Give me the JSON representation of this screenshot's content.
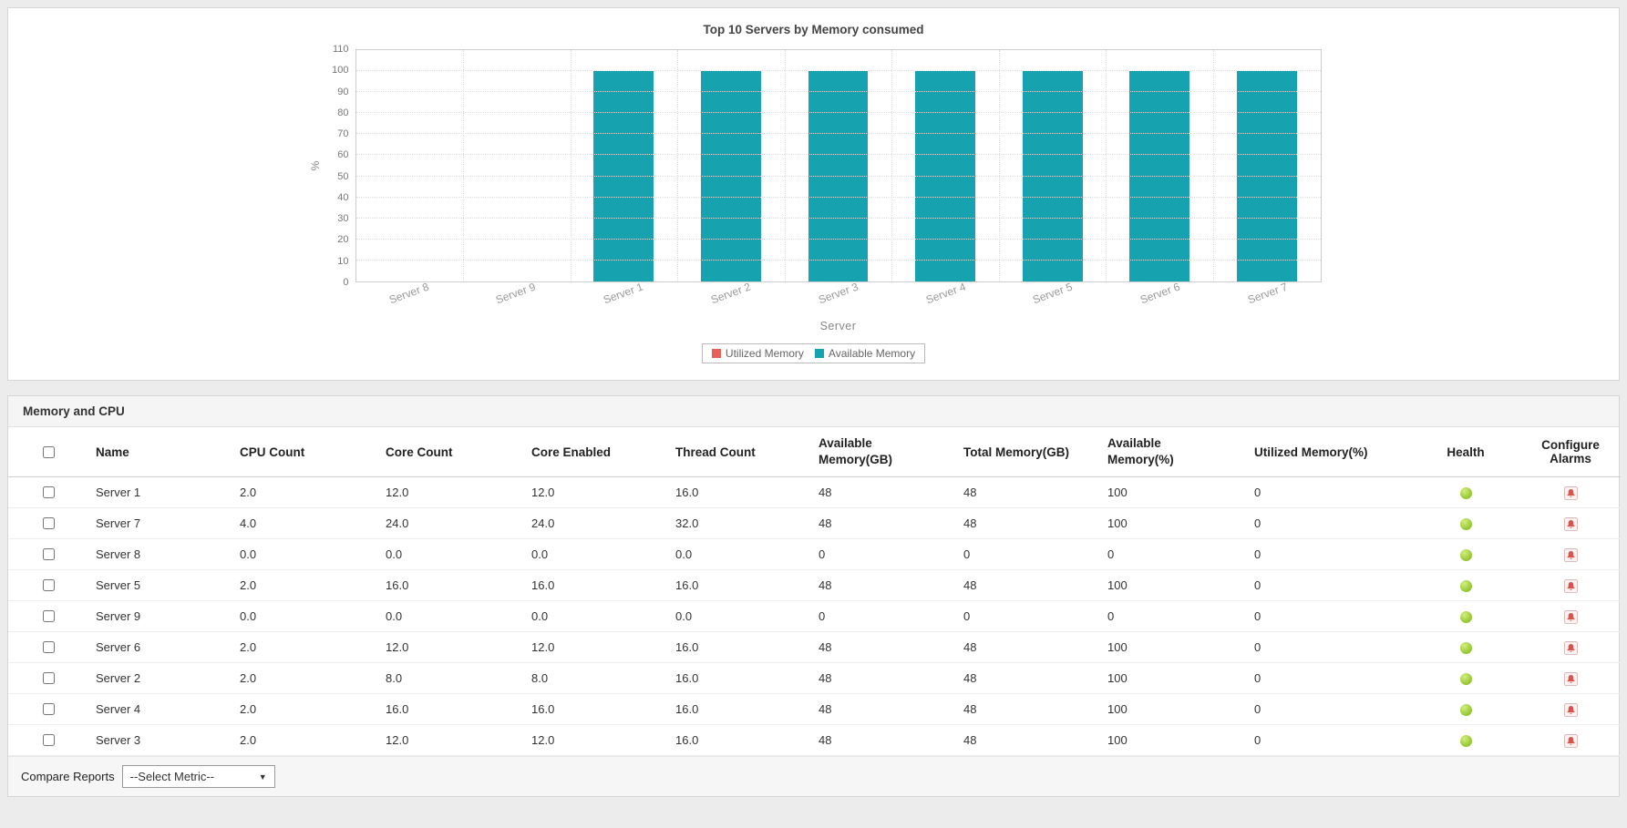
{
  "chart_data": {
    "type": "bar",
    "title": "Top 10 Servers by Memory consumed",
    "xlabel": "Server",
    "ylabel": "%",
    "ylim": [
      0,
      110
    ],
    "ytick_step": 10,
    "grid": true,
    "legend_position": "bottom",
    "categories": [
      "Server 8",
      "Server 9",
      "Server 1",
      "Server 2",
      "Server 3",
      "Server 4",
      "Server 5",
      "Server 6",
      "Server 7"
    ],
    "series": [
      {
        "name": "Utilized Memory",
        "color": "#e8605a",
        "values": [
          0,
          0,
          0,
          0,
          0,
          0,
          0,
          0,
          0
        ]
      },
      {
        "name": "Available Memory",
        "color": "#17a2b0",
        "values": [
          0,
          0,
          100,
          100,
          100,
          100,
          100,
          100,
          100
        ]
      }
    ]
  },
  "table": {
    "title": "Memory and CPU",
    "columns": [
      "Name",
      "CPU Count",
      "Core Count",
      "Core Enabled",
      "Thread Count",
      "Available Memory(GB)",
      "Total Memory(GB)",
      "Available Memory(%)",
      "Utilized Memory(%)",
      "Health",
      "Configure Alarms"
    ],
    "rows": [
      {
        "cells": [
          "Server 1",
          "2.0",
          "12.0",
          "12.0",
          "16.0",
          "48",
          "48",
          "100",
          "0"
        ],
        "health": "green"
      },
      {
        "cells": [
          "Server 7",
          "4.0",
          "24.0",
          "24.0",
          "32.0",
          "48",
          "48",
          "100",
          "0"
        ],
        "health": "green"
      },
      {
        "cells": [
          "Server 8",
          "0.0",
          "0.0",
          "0.0",
          "0.0",
          "0",
          "0",
          "0",
          "0"
        ],
        "health": "green"
      },
      {
        "cells": [
          "Server 5",
          "2.0",
          "16.0",
          "16.0",
          "16.0",
          "48",
          "48",
          "100",
          "0"
        ],
        "health": "green"
      },
      {
        "cells": [
          "Server 9",
          "0.0",
          "0.0",
          "0.0",
          "0.0",
          "0",
          "0",
          "0",
          "0"
        ],
        "health": "green"
      },
      {
        "cells": [
          "Server 6",
          "2.0",
          "12.0",
          "12.0",
          "16.0",
          "48",
          "48",
          "100",
          "0"
        ],
        "health": "green"
      },
      {
        "cells": [
          "Server 2",
          "2.0",
          "8.0",
          "8.0",
          "16.0",
          "48",
          "48",
          "100",
          "0"
        ],
        "health": "green"
      },
      {
        "cells": [
          "Server 4",
          "2.0",
          "16.0",
          "16.0",
          "16.0",
          "48",
          "48",
          "100",
          "0"
        ],
        "health": "green"
      },
      {
        "cells": [
          "Server 3",
          "2.0",
          "12.0",
          "12.0",
          "16.0",
          "48",
          "48",
          "100",
          "0"
        ],
        "health": "green"
      }
    ]
  },
  "footer": {
    "compare_label": "Compare Reports",
    "metric_select": "--Select Metric--"
  },
  "colors": {
    "bar_teal": "#17a2b0",
    "legend_red": "#e8605a",
    "health_green": "#8fc32a"
  }
}
